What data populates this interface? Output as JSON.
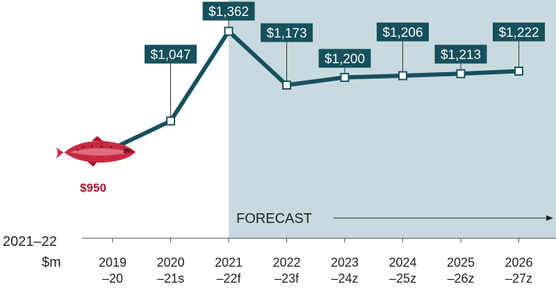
{
  "chart_data": {
    "type": "line",
    "categories": [
      "2019 –20",
      "2020 –21s",
      "2021 –22f",
      "2022 –23f",
      "2023 –24z",
      "2024 –25z",
      "2025 –26z",
      "2026 –27z"
    ],
    "tick_labels": [
      [
        "2019",
        "–20"
      ],
      [
        "2020",
        "–21s"
      ],
      [
        "2021",
        "–22f"
      ],
      [
        "2022",
        "–23f"
      ],
      [
        "2023",
        "–24z"
      ],
      [
        "2024",
        "–25z"
      ],
      [
        "2025",
        "–26z"
      ],
      [
        "2026",
        "–27z"
      ]
    ],
    "values": [
      950,
      1047,
      1362,
      1173,
      1200,
      1206,
      1213,
      1222
    ],
    "value_labels": [
      "$950",
      "$1,047",
      "$1,362",
      "$1,173",
      "$1,200",
      "$1,206",
      "$1,213",
      "$1,222"
    ],
    "ylabel_lines": [
      "2021–22",
      "$m"
    ],
    "forecast_label": "FORECAST",
    "forecast_start_index": 2,
    "colors": {
      "line": "#16505c",
      "label_box": "#16505c",
      "forecast_band": "#c8dadf",
      "first_value_text": "#a5162e",
      "fish": "#c8293f"
    },
    "icon": "salmon-fish-icon"
  }
}
